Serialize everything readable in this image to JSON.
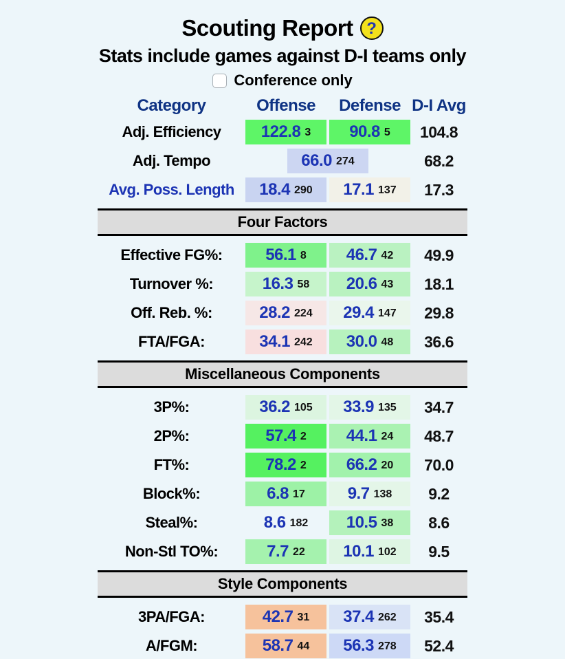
{
  "page": {
    "title": "Scouting Report",
    "help_icon_glyph": "?",
    "subtitle": "Stats include games against D-I teams only",
    "conference_checkbox_label": "Conference only",
    "checkbox_checked": false
  },
  "colors": {
    "page_background": "#edf6fa",
    "header_text": "#0f3384",
    "value_text": "#1c34b4",
    "section_bar_background": "#dcdcdc",
    "help_icon_background": "#f3e11c"
  },
  "table": {
    "headers": {
      "category": "Category",
      "offense": "Offense",
      "defense": "Defense",
      "avg": "D-I Avg"
    },
    "sections": [
      {
        "title": "",
        "rows": [
          {
            "label": "Adj. Efficiency",
            "link": false,
            "layout": "normal",
            "offense": {
              "value": "122.8",
              "rank": "3",
              "bg": "#5ef567"
            },
            "defense": {
              "value": "90.8",
              "rank": "5",
              "bg": "#5ef567"
            },
            "avg": "104.8"
          },
          {
            "label": "Adj. Tempo",
            "link": false,
            "layout": "center",
            "center": {
              "value": "66.0",
              "rank": "274",
              "bg": "#ccd6f2"
            },
            "avg": "68.2"
          },
          {
            "label": "Avg. Poss. Length",
            "link": true,
            "layout": "normal",
            "offense": {
              "value": "18.4",
              "rank": "290",
              "bg": "#c9d4f1"
            },
            "defense": {
              "value": "17.1",
              "rank": "137",
              "bg": "#f2f1e8"
            },
            "avg": "17.3"
          }
        ]
      },
      {
        "title": "Four Factors",
        "rows": [
          {
            "label": "Effective FG%:",
            "link": false,
            "layout": "normal",
            "offense": {
              "value": "56.1",
              "rank": "8",
              "bg": "#7ff28b"
            },
            "defense": {
              "value": "46.7",
              "rank": "42",
              "bg": "#baf2c1"
            },
            "avg": "49.9"
          },
          {
            "label": "Turnover %:",
            "link": false,
            "layout": "normal",
            "offense": {
              "value": "16.3",
              "rank": "58",
              "bg": "#c6f4cb"
            },
            "defense": {
              "value": "20.6",
              "rank": "43",
              "bg": "#b9f2c0"
            },
            "avg": "18.1"
          },
          {
            "label": "Off. Reb. %:",
            "link": false,
            "layout": "normal",
            "offense": {
              "value": "28.2",
              "rank": "224",
              "bg": "#f6e7e6"
            },
            "defense": {
              "value": "29.4",
              "rank": "147",
              "bg": "#eaf6ec"
            },
            "avg": "29.8"
          },
          {
            "label": "FTA/FGA:",
            "link": false,
            "layout": "normal",
            "offense": {
              "value": "34.1",
              "rank": "242",
              "bg": "#f8dfdf"
            },
            "defense": {
              "value": "30.0",
              "rank": "48",
              "bg": "#b7f2be"
            },
            "avg": "36.6"
          }
        ]
      },
      {
        "title": "Miscellaneous Components",
        "rows": [
          {
            "label": "3P%:",
            "link": false,
            "layout": "normal",
            "offense": {
              "value": "36.2",
              "rank": "105",
              "bg": "#dcf5e0"
            },
            "defense": {
              "value": "33.9",
              "rank": "135",
              "bg": "#e3f6e7"
            },
            "avg": "34.7"
          },
          {
            "label": "2P%:",
            "link": false,
            "layout": "normal",
            "offense": {
              "value": "57.4",
              "rank": "2",
              "bg": "#55f160"
            },
            "defense": {
              "value": "44.1",
              "rank": "24",
              "bg": "#aaf2b2"
            },
            "avg": "48.7"
          },
          {
            "label": "FT%:",
            "link": false,
            "layout": "normal",
            "offense": {
              "value": "78.2",
              "rank": "2",
              "bg": "#55f160"
            },
            "defense": {
              "value": "66.2",
              "rank": "20",
              "bg": "#a2f2ac"
            },
            "avg": "70.0"
          },
          {
            "label": "Block%:",
            "link": false,
            "layout": "normal",
            "offense": {
              "value": "6.8",
              "rank": "17",
              "bg": "#9df2a6"
            },
            "defense": {
              "value": "9.7",
              "rank": "138",
              "bg": "#e4f6e8"
            },
            "avg": "9.2"
          },
          {
            "label": "Steal%:",
            "link": false,
            "layout": "normal",
            "offense": {
              "value": "8.6",
              "rank": "182",
              "bg": ""
            },
            "defense": {
              "value": "10.5",
              "rank": "38",
              "bg": "#b4f2bb"
            },
            "avg": "8.6"
          },
          {
            "label": "Non-Stl TO%:",
            "link": false,
            "layout": "normal",
            "offense": {
              "value": "7.7",
              "rank": "22",
              "bg": "#a5f2ae"
            },
            "defense": {
              "value": "10.1",
              "rank": "102",
              "bg": "#def5e3"
            },
            "avg": "9.5"
          }
        ]
      },
      {
        "title": "Style Components",
        "rows": [
          {
            "label": "3PA/FGA:",
            "link": false,
            "layout": "normal",
            "offense": {
              "value": "42.7",
              "rank": "31",
              "bg": "#f6c29c"
            },
            "defense": {
              "value": "37.4",
              "rank": "262",
              "bg": "#d9e3f6"
            },
            "avg": "35.4"
          },
          {
            "label": "A/FGM:",
            "link": false,
            "layout": "normal",
            "offense": {
              "value": "58.7",
              "rank": "44",
              "bg": "#f6c29c"
            },
            "defense": {
              "value": "56.3",
              "rank": "278",
              "bg": "#cdd9f6"
            },
            "avg": "52.4"
          }
        ]
      }
    ]
  }
}
